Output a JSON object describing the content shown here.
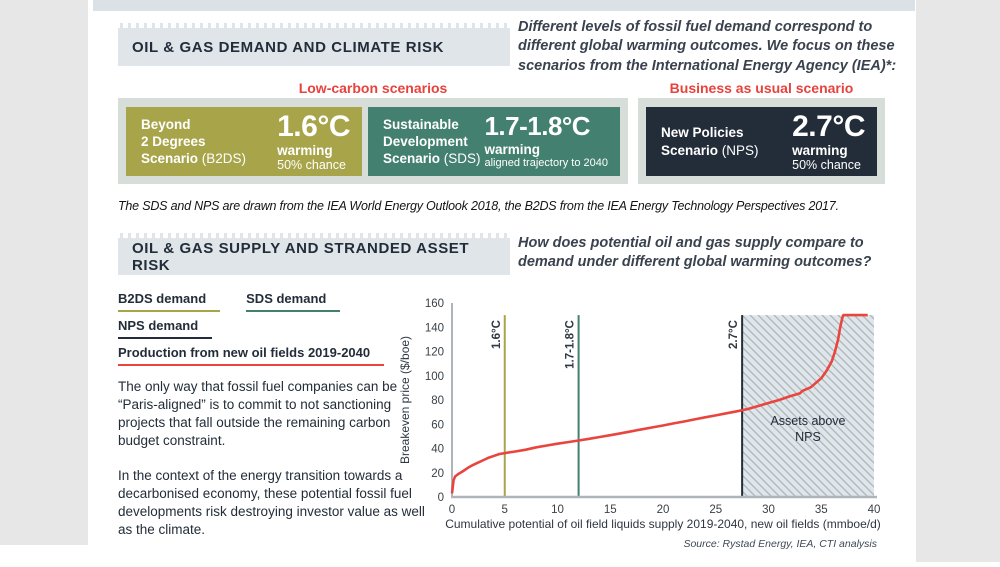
{
  "section1": {
    "header": "OIL & GAS DEMAND AND CLIMATE RISK",
    "intro": "Different levels of fossil fuel demand correspond to different global warming outcomes. We focus on these scenarios from the International Energy Agency (IEA)*:",
    "group_labels": {
      "low_carbon": "Low-carbon scenarios",
      "business_as_usual": "Business as usual scenario"
    },
    "scenarios": [
      {
        "name_line1": "Beyond",
        "name_line2": "2 Degrees",
        "scenario_word": "Scenario",
        "abbr": "(B2DS)",
        "temp": "1.6°C",
        "warming_label": "warming",
        "sub_label": "50% chance",
        "color": "#a8a44a"
      },
      {
        "name_line1": "Sustainable",
        "name_line2": "Development",
        "scenario_word": "Scenario",
        "abbr": "(SDS)",
        "temp": "1.7-1.8°C",
        "warming_label": "warming",
        "sub_label": "aligned trajectory to 2040",
        "color": "#43806f"
      },
      {
        "name_line1": "New Policies",
        "scenario_word": "Scenario",
        "abbr": "(NPS)",
        "temp": "2.7°C",
        "warming_label": "warming",
        "sub_label": "50% chance",
        "color": "#232d39"
      }
    ],
    "footnote": "The SDS and NPS are drawn from the IEA World Energy Outlook 2018, the B2DS from the IEA Energy Technology Perspectives 2017."
  },
  "section2": {
    "header": "OIL & GAS SUPPLY AND STRANDED ASSET RISK",
    "question": "How does potential oil and gas supply compare to demand under different global warming outcomes?",
    "legend": [
      {
        "label": "B2DS demand",
        "color": "#a8a44a"
      },
      {
        "label": "SDS demand",
        "color": "#43806f"
      },
      {
        "label": "NPS demand",
        "color": "#232d39"
      },
      {
        "label": "Production from new oil fields 2019-2040",
        "color": "#e8453f"
      }
    ],
    "paragraphs": [
      "The only way that fossil fuel companies can be “Paris-aligned” is to commit to not sanctioning projects that fall outside the remaining carbon budget constraint.",
      "In the context of the energy transition towards a decarbonised economy, these potential fossil fuel developments risk destroying investor value as well as the climate."
    ]
  },
  "chart_data": {
    "type": "line",
    "title": "",
    "xlabel": "Cumulative potential of oil field liquids supply 2019-2040, new oil fields (mmboe/d)",
    "ylabel": "Breakeven price ($/boe)",
    "xlim": [
      0,
      40
    ],
    "ylim": [
      0,
      160
    ],
    "xticks": [
      0,
      5,
      10,
      15,
      20,
      25,
      30,
      35,
      40
    ],
    "yticks": [
      0,
      20,
      40,
      60,
      80,
      100,
      120,
      140,
      160
    ],
    "grid": false,
    "legend_position": "none",
    "series": [
      {
        "name": "Production from new oil fields 2019-2040",
        "color": "#e8453f",
        "points": [
          [
            0,
            3
          ],
          [
            0.15,
            14
          ],
          [
            0.3,
            17
          ],
          [
            0.6,
            19
          ],
          [
            1,
            21
          ],
          [
            1.5,
            24
          ],
          [
            2,
            26.5
          ],
          [
            2.5,
            28.5
          ],
          [
            3,
            30.5
          ],
          [
            3.5,
            32.5
          ],
          [
            4,
            34
          ],
          [
            4.5,
            35.5
          ],
          [
            5,
            36.2
          ],
          [
            6,
            37.5
          ],
          [
            7,
            39
          ],
          [
            8,
            41
          ],
          [
            9,
            42.5
          ],
          [
            10,
            44
          ],
          [
            11,
            45.3
          ],
          [
            12,
            46.6
          ],
          [
            13,
            48
          ],
          [
            14,
            49.5
          ],
          [
            15,
            51
          ],
          [
            16,
            52.5
          ],
          [
            17,
            54.2
          ],
          [
            18,
            55.8
          ],
          [
            19,
            57.4
          ],
          [
            20,
            59
          ],
          [
            21,
            60.7
          ],
          [
            22,
            62.3
          ],
          [
            23,
            64
          ],
          [
            24,
            65.7
          ],
          [
            25,
            67.3
          ],
          [
            26,
            69
          ],
          [
            27,
            70.7
          ],
          [
            28,
            72.5
          ],
          [
            29,
            75
          ],
          [
            30,
            77.5
          ],
          [
            31,
            80
          ],
          [
            32,
            83
          ],
          [
            33,
            85.5
          ],
          [
            33.2,
            87.5
          ],
          [
            34,
            90.5
          ],
          [
            35,
            98
          ],
          [
            35.5,
            104
          ],
          [
            36,
            112
          ],
          [
            36.3,
            120
          ],
          [
            36.6,
            130
          ],
          [
            36.8,
            140
          ],
          [
            37,
            148
          ],
          [
            37.1,
            150
          ],
          [
            39.4,
            150
          ]
        ]
      }
    ],
    "vlines": [
      {
        "x": 5,
        "label": "1.6°C",
        "color": "#a8a44a",
        "y_top": 150
      },
      {
        "x": 12,
        "label": "1.7-1.8°C",
        "color": "#43806f",
        "y_top": 150
      },
      {
        "x": 27.5,
        "label": "2.7°C",
        "color": "#232d39",
        "y_top": 150
      }
    ],
    "shaded_region": {
      "x0": 27.5,
      "x1": 40,
      "y0": 0,
      "y1": 150,
      "label_line1": "Assets above",
      "label_line2": "NPS",
      "fill": "#dfe6ea",
      "hatch_color": "#a9b3ba"
    },
    "source": "Source: Rystad Energy, IEA, CTI analysis"
  }
}
